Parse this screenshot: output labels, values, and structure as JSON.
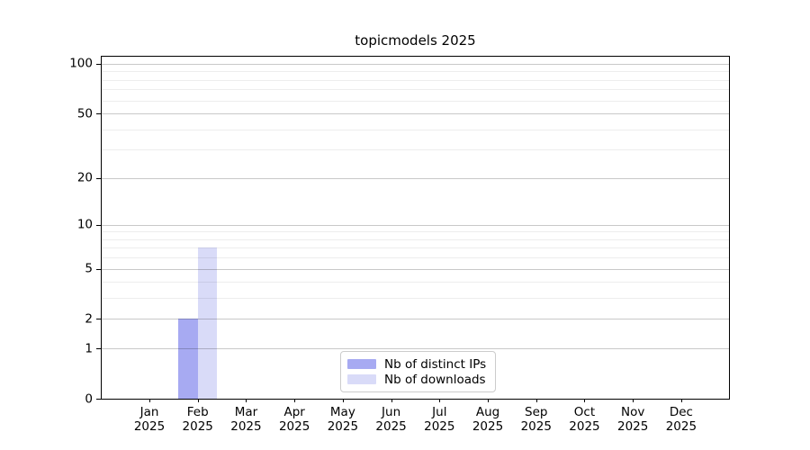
{
  "chart_data": {
    "type": "bar",
    "title": "topicmodels 2025",
    "categories": [
      "Jan 2025",
      "Feb 2025",
      "Mar 2025",
      "Apr 2025",
      "May 2025",
      "Jun 2025",
      "Jul 2025",
      "Aug 2025",
      "Sep 2025",
      "Oct 2025",
      "Nov 2025",
      "Dec 2025"
    ],
    "x_axis": {
      "months": [
        "Jan",
        "Feb",
        "Mar",
        "Apr",
        "May",
        "Jun",
        "Jul",
        "Aug",
        "Sep",
        "Oct",
        "Nov",
        "Dec"
      ],
      "year": "2025"
    },
    "series": [
      {
        "name": "Nb of distinct IPs",
        "color": "#a7aaf2",
        "values": [
          0,
          2,
          0,
          0,
          0,
          0,
          0,
          0,
          0,
          0,
          0,
          0
        ]
      },
      {
        "name": "Nb of downloads",
        "color": "#d9dbf8",
        "values": [
          0,
          7,
          0,
          0,
          0,
          0,
          0,
          0,
          0,
          0,
          0,
          0
        ]
      }
    ],
    "y_axis": {
      "scale": "log1p",
      "ticks": [
        0,
        1,
        2,
        5,
        10,
        20,
        50,
        100
      ],
      "minor_ticks": [
        3,
        4,
        6,
        7,
        8,
        9,
        30,
        40,
        60,
        70,
        80,
        90
      ],
      "min": 0,
      "max": 110.5
    },
    "grid": true,
    "legend": {
      "position": "lower-center-inside"
    },
    "colors": {
      "axis": "#000000",
      "text": "#000000",
      "grid_major": "rgba(0,0,0,0.21)",
      "grid_minor": "rgba(0,0,0,0.07)",
      "legend_border": "#cccccc",
      "legend_bg": "rgba(255,255,255,0.8)"
    }
  }
}
